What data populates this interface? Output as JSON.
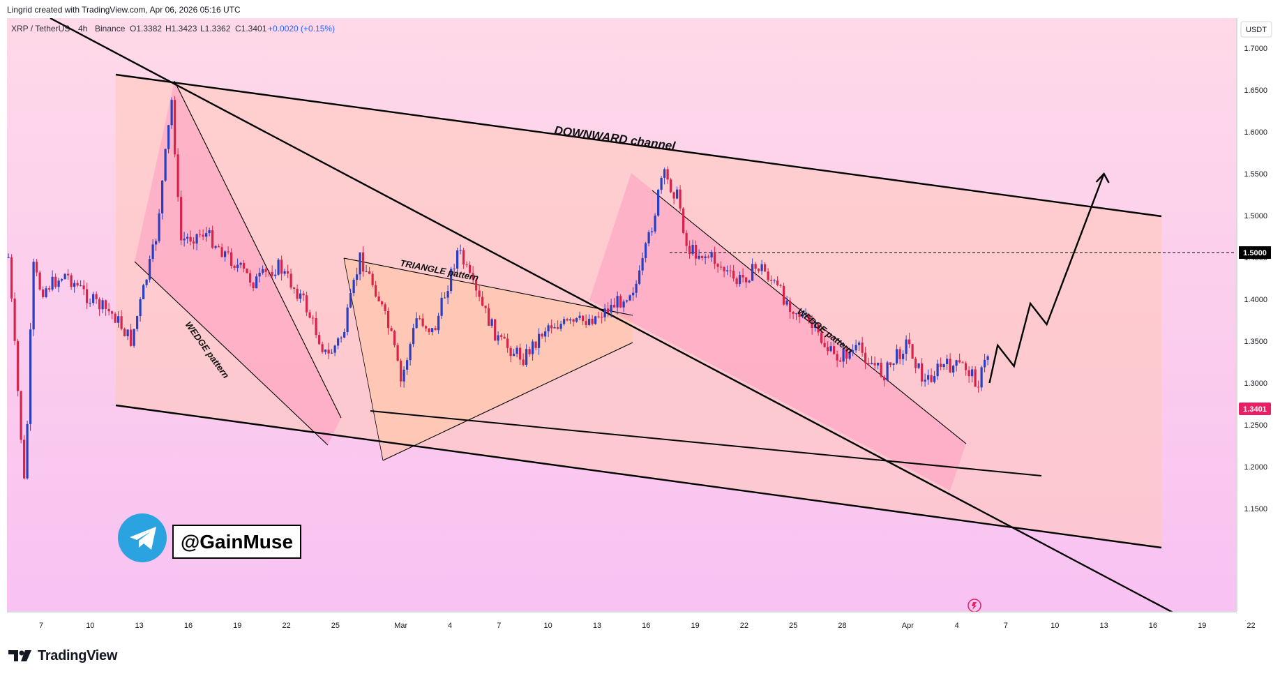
{
  "header": {
    "credit": "Lingrid created with TradingView.com, Apr 06, 2026 05:16 UTC"
  },
  "symbol_bar": {
    "symbol": "XRP / TetherUS",
    "interval": "4h",
    "exchange": "Binance",
    "open": "O1.3382",
    "high": "H1.3423",
    "low": "L1.3362",
    "close": "C1.3401",
    "change": "+0.0020 (+0.15%)"
  },
  "price_axis": {
    "currency_label": "USDT",
    "ticks": [
      "1.7000",
      "1.6500",
      "1.6000",
      "1.5500",
      "1.5000",
      "1.4500",
      "1.4000",
      "1.3500",
      "1.3000",
      "1.2500",
      "1.2000",
      "1.1500"
    ],
    "level_tag": "1.5000",
    "last_price_tag": "1.3401"
  },
  "time_axis": {
    "ticks": [
      "7",
      "10",
      "13",
      "16",
      "19",
      "22",
      "25",
      "Mar",
      "4",
      "7",
      "10",
      "13",
      "16",
      "19",
      "22",
      "25",
      "28",
      "Apr",
      "4",
      "7",
      "10",
      "13",
      "16",
      "19",
      "22"
    ]
  },
  "annotations": {
    "channel": "DOWNWARD channel",
    "triangle": "TRIANGLE pattern",
    "wedge_left": "WEDGE pattern",
    "wedge_right": "WEDGE pattern",
    "handle": "@GainMuse"
  },
  "colors": {
    "bg_top": "#ffd9e8",
    "bg_bottom": "#f8c2f2",
    "channel_fill": "#ffd4c4",
    "wedge_fill": "#ff9ec5",
    "triangle_fill": "#ffd0b0",
    "bull": "#2a3fbf",
    "bear": "#d8234a",
    "price_tag": "#e91e63",
    "telegram": "#2aa3e0"
  },
  "footer": {
    "brand": "TradingView"
  },
  "chart_data": {
    "type": "candlestick",
    "symbol": "XRP / TetherUS",
    "interval": "4h",
    "y_axis_range": [
      1.13,
      1.72
    ],
    "last_close": 1.3401,
    "horizontal_level": 1.5,
    "x_axis_dates": [
      "Feb 7",
      "Feb 10",
      "Feb 13",
      "Feb 16",
      "Feb 19",
      "Feb 22",
      "Feb 25",
      "Mar 1",
      "Mar 4",
      "Mar 7",
      "Mar 10",
      "Mar 13",
      "Mar 16",
      "Mar 19",
      "Mar 22",
      "Mar 25",
      "Mar 28",
      "Apr 1",
      "Apr 4",
      "Apr 7",
      "Apr 10",
      "Apr 13",
      "Apr 16",
      "Apr 19",
      "Apr 22"
    ],
    "close_path": [
      {
        "date": "Feb 5",
        "close": 1.45
      },
      {
        "date": "Feb 6",
        "close": 1.17
      },
      {
        "date": "Feb 6.5",
        "close": 1.44
      },
      {
        "date": "Feb 7",
        "close": 1.41
      },
      {
        "date": "Feb 8.5",
        "close": 1.43
      },
      {
        "date": "Feb 10",
        "close": 1.4
      },
      {
        "date": "Feb 11.5",
        "close": 1.38
      },
      {
        "date": "Feb 12.5",
        "close": 1.35
      },
      {
        "date": "Feb 14",
        "close": 1.47
      },
      {
        "date": "Feb 15",
        "close": 1.64
      },
      {
        "date": "Feb 15.5",
        "close": 1.47
      },
      {
        "date": "Feb 17",
        "close": 1.48
      },
      {
        "date": "Feb 18.5",
        "close": 1.45
      },
      {
        "date": "Feb 20",
        "close": 1.42
      },
      {
        "date": "Feb 21.5",
        "close": 1.44
      },
      {
        "date": "Feb 23",
        "close": 1.4
      },
      {
        "date": "Feb 24.5",
        "close": 1.33
      },
      {
        "date": "Feb 25.5",
        "close": 1.36
      },
      {
        "date": "Feb 26.5",
        "close": 1.45
      },
      {
        "date": "Feb 27.5",
        "close": 1.41
      },
      {
        "date": "Feb 28.5",
        "close": 1.35
      },
      {
        "date": "Mar 1",
        "close": 1.3
      },
      {
        "date": "Mar 2",
        "close": 1.38
      },
      {
        "date": "Mar 3",
        "close": 1.36
      },
      {
        "date": "Mar 4.5",
        "close": 1.46
      },
      {
        "date": "Mar 5.5",
        "close": 1.41
      },
      {
        "date": "Mar 7",
        "close": 1.35
      },
      {
        "date": "Mar 8.5",
        "close": 1.33
      },
      {
        "date": "Mar 10",
        "close": 1.37
      },
      {
        "date": "Mar 11.5",
        "close": 1.37
      },
      {
        "date": "Mar 13",
        "close": 1.38
      },
      {
        "date": "Mar 14.5",
        "close": 1.4
      },
      {
        "date": "Mar 15.5",
        "close": 1.42
      },
      {
        "date": "Mar 16.5",
        "close": 1.5
      },
      {
        "date": "Mar 17",
        "close": 1.55
      },
      {
        "date": "Mar 18",
        "close": 1.52
      },
      {
        "date": "Mar 18.5",
        "close": 1.46
      },
      {
        "date": "Mar 20",
        "close": 1.45
      },
      {
        "date": "Mar 21.5",
        "close": 1.42
      },
      {
        "date": "Mar 23",
        "close": 1.44
      },
      {
        "date": "Mar 24.5",
        "close": 1.4
      },
      {
        "date": "Mar 26",
        "close": 1.37
      },
      {
        "date": "Mar 27.5",
        "close": 1.33
      },
      {
        "date": "Mar 29",
        "close": 1.34
      },
      {
        "date": "Mar 30.5",
        "close": 1.31
      },
      {
        "date": "Apr 1",
        "close": 1.35
      },
      {
        "date": "Apr 2",
        "close": 1.3
      },
      {
        "date": "Apr 3",
        "close": 1.32
      },
      {
        "date": "Apr 4.5",
        "close": 1.32
      },
      {
        "date": "Apr 5.3",
        "close": 1.3
      },
      {
        "date": "Apr 6",
        "close": 1.3401
      }
    ],
    "projection_path": [
      {
        "date": "Apr 6",
        "value": 1.3
      },
      {
        "date": "Apr 6.5",
        "value": 1.345
      },
      {
        "date": "Apr 7.5",
        "value": 1.32
      },
      {
        "date": "Apr 8.5",
        "value": 1.395
      },
      {
        "date": "Apr 9.5",
        "value": 1.37
      },
      {
        "date": "Apr 13",
        "value": 1.55
      }
    ]
  }
}
